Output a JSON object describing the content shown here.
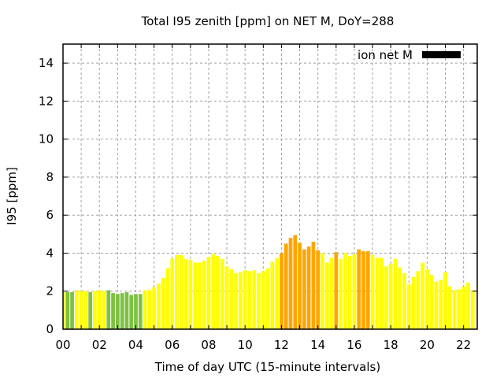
{
  "chart_data": {
    "type": "bar",
    "title": "Total I95 zenith [ppm] on NET M, DoY=288",
    "xlabel": "Time of day UTC (15-minute intervals)",
    "ylabel": "I95 [ppm]",
    "xlim": [
      0,
      22.75
    ],
    "ylim": [
      0,
      15
    ],
    "grid": true,
    "legend": {
      "placement": "top-right",
      "entries": [
        {
          "label": "ion net M",
          "color": "#000000"
        }
      ]
    },
    "x_ticks": [
      {
        "value": 0,
        "label": "00"
      },
      {
        "value": 2,
        "label": "02"
      },
      {
        "value": 4,
        "label": "04"
      },
      {
        "value": 6,
        "label": "06"
      },
      {
        "value": 8,
        "label": "08"
      },
      {
        "value": 10,
        "label": "10"
      },
      {
        "value": 12,
        "label": "12"
      },
      {
        "value": 14,
        "label": "14"
      },
      {
        "value": 16,
        "label": "16"
      },
      {
        "value": 18,
        "label": "18"
      },
      {
        "value": 20,
        "label": "20"
      },
      {
        "value": 22,
        "label": "22"
      }
    ],
    "y_ticks": [
      {
        "value": 0,
        "label": "0"
      },
      {
        "value": 2,
        "label": "2"
      },
      {
        "value": 4,
        "label": "4"
      },
      {
        "value": 6,
        "label": "6"
      },
      {
        "value": 8,
        "label": "8"
      },
      {
        "value": 10,
        "label": "10"
      },
      {
        "value": 12,
        "label": "12"
      },
      {
        "value": 14,
        "label": "14"
      }
    ],
    "interval_hours": 0.25,
    "color_classes": {
      "g": "#7dc142",
      "y": "#ffff00",
      "o": "#ffa500"
    },
    "values": [
      1.95,
      1.95,
      1.95,
      2.05,
      2.0,
      2.0,
      1.95,
      2.0,
      2.05,
      2.0,
      2.05,
      1.9,
      1.85,
      1.9,
      1.95,
      1.8,
      1.85,
      1.85,
      2.05,
      2.05,
      2.2,
      2.4,
      2.7,
      3.2,
      3.7,
      3.9,
      3.9,
      3.7,
      3.65,
      3.5,
      3.5,
      3.6,
      3.8,
      3.95,
      3.85,
      3.7,
      3.3,
      3.15,
      2.95,
      3.0,
      3.1,
      3.05,
      3.1,
      2.95,
      3.05,
      3.2,
      3.55,
      3.75,
      4.0,
      4.5,
      4.8,
      4.95,
      4.55,
      4.2,
      4.35,
      4.6,
      4.15,
      4.0,
      3.5,
      3.75,
      4.05,
      3.7,
      4.0,
      3.85,
      3.95,
      4.2,
      4.1,
      4.1,
      3.9,
      3.75,
      3.75,
      3.3,
      3.45,
      3.7,
      3.25,
      2.95,
      2.35,
      2.75,
      3.05,
      3.5,
      3.15,
      2.85,
      2.5,
      2.6,
      3.0,
      2.25,
      2.05,
      2.1,
      2.25,
      2.45,
      2.05
    ],
    "colors": [
      "y",
      "g",
      "g",
      "y",
      "y",
      "y",
      "g",
      "y",
      "y",
      "y",
      "g",
      "g",
      "g",
      "g",
      "g",
      "g",
      "g",
      "g",
      "y",
      "y",
      "y",
      "y",
      "y",
      "y",
      "y",
      "y",
      "y",
      "y",
      "y",
      "y",
      "y",
      "y",
      "y",
      "y",
      "y",
      "y",
      "y",
      "y",
      "y",
      "y",
      "y",
      "y",
      "y",
      "y",
      "y",
      "y",
      "y",
      "y",
      "o",
      "o",
      "o",
      "o",
      "o",
      "o",
      "o",
      "o",
      "o",
      "y",
      "y",
      "y",
      "o",
      "y",
      "y",
      "y",
      "y",
      "o",
      "o",
      "o",
      "y",
      "y",
      "y",
      "y",
      "y",
      "y",
      "y",
      "y",
      "y",
      "y",
      "y",
      "y",
      "y",
      "y",
      "y",
      "y",
      "y",
      "y",
      "y",
      "y",
      "y",
      "y",
      "y"
    ]
  }
}
